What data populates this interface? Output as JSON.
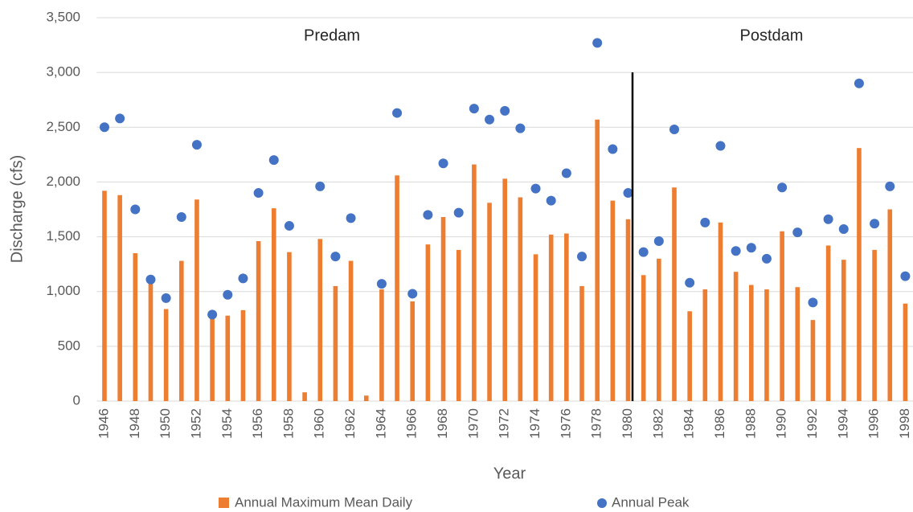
{
  "chart_data": {
    "type": "bar_scatter",
    "x_label": "Year",
    "y_label": "Discharge (cfs)",
    "annotations": [
      "Predam",
      "Postdam"
    ],
    "categories": [
      "1946",
      null,
      "1948",
      null,
      "1950",
      null,
      "1952",
      null,
      "1954",
      null,
      "1956",
      null,
      "1958",
      null,
      "1960",
      null,
      "1962",
      null,
      "1964",
      null,
      "1966",
      null,
      "1968",
      null,
      "1970",
      null,
      "1972",
      null,
      "1974",
      null,
      "1976",
      null,
      "1978",
      null,
      "1980",
      null,
      "1982",
      null,
      "1984",
      null,
      "1986",
      null,
      "1988",
      null,
      "1990",
      null,
      "1992",
      null,
      "1994",
      null,
      "1996",
      null,
      "1998"
    ],
    "series": [
      {
        "name": "Annual Maximum Mean Daily",
        "kind": "bar",
        "color": "#ed7d31",
        "values": [
          1920,
          1880,
          1350,
          1080,
          840,
          1280,
          1840,
          770,
          780,
          830,
          1460,
          1760,
          1360,
          80,
          1480,
          1050,
          1280,
          50,
          1020,
          2060,
          910,
          1430,
          1680,
          1380,
          2160,
          1810,
          2030,
          1860,
          1340,
          1520,
          1530,
          1050,
          2570,
          1830,
          1660,
          1150,
          1300,
          1950,
          820,
          1020,
          1630,
          1180,
          1060,
          1020,
          1550,
          1040,
          740,
          1420,
          1290,
          2310,
          1380,
          1750,
          890
        ]
      },
      {
        "name": "Annual Peak",
        "kind": "scatter",
        "color": "#4472c4",
        "values": [
          2500,
          2580,
          1750,
          1110,
          940,
          1680,
          2340,
          790,
          970,
          1120,
          1900,
          2200,
          1600,
          null,
          1960,
          1320,
          1670,
          null,
          1070,
          2630,
          980,
          1700,
          2170,
          1720,
          2670,
          2570,
          2650,
          2490,
          1940,
          1830,
          2080,
          1320,
          3270,
          2300,
          1900,
          1360,
          1460,
          2480,
          1080,
          1630,
          2330,
          1370,
          1400,
          1300,
          1950,
          1540,
          900,
          1660,
          1570,
          2900,
          1620,
          1960,
          1140
        ]
      }
    ],
    "ylim": [
      0,
      3500
    ],
    "yticks": [
      0,
      500,
      {
        "value": 1000,
        "label": "1,000"
      },
      {
        "value": 1500,
        "label": "1,500"
      },
      {
        "value": 2000,
        "label": "2,000"
      },
      {
        "value": 2500,
        "label": "2,500"
      },
      {
        "value": 3000,
        "label": "3,000"
      },
      {
        "value": 3500,
        "label": "3,500"
      }
    ],
    "grid": true
  }
}
